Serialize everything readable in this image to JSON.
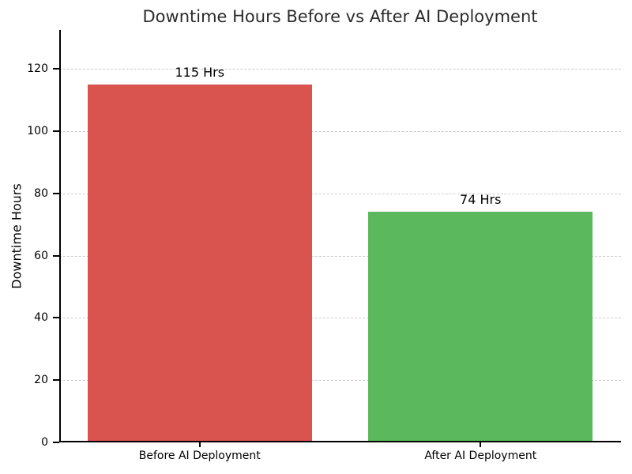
{
  "chart_data": {
    "type": "bar",
    "title": "Downtime Hours Before vs After AI Deployment",
    "xlabel": "",
    "ylabel": "Downtime Hours",
    "categories": [
      "Before AI Deployment",
      "After AI Deployment"
    ],
    "values": [
      115,
      74
    ],
    "bar_labels": [
      "115 Hrs",
      "74 Hrs"
    ],
    "bar_colors": [
      "#d9534f",
      "#5cb85c"
    ],
    "ylim": [
      0,
      132.5
    ],
    "yticks": [
      0,
      20,
      40,
      60,
      80,
      100,
      120
    ],
    "grid": "horizontal-dashed",
    "legend": "none",
    "colors": {
      "grid": "#cccccc",
      "axis": "#000000",
      "title_text": "#2b2b2b",
      "label_text": "#000000"
    }
  }
}
